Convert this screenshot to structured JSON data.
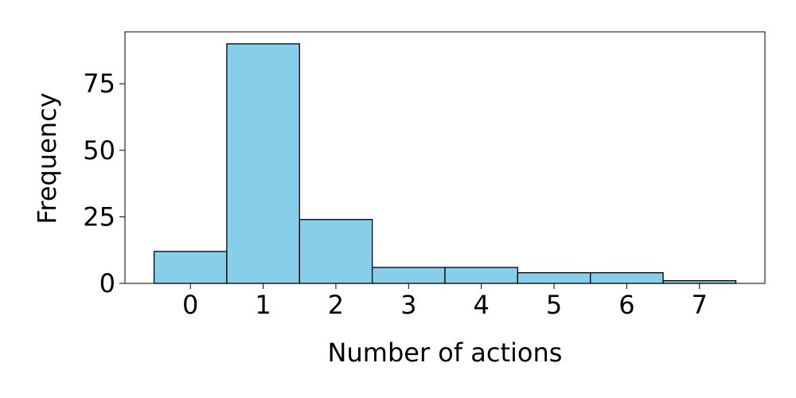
{
  "chart_data": {
    "type": "bar",
    "title": "",
    "xlabel": "Number of actions",
    "ylabel": "Frequency",
    "categories": [
      "0",
      "1",
      "2",
      "3",
      "4",
      "5",
      "6",
      "7"
    ],
    "values": [
      12,
      90,
      24,
      6,
      6,
      4,
      4,
      1
    ],
    "xlim": [
      -0.9,
      7.9
    ],
    "ylim": [
      0,
      94.5
    ],
    "xticks": [
      0,
      1,
      2,
      3,
      4,
      5,
      6,
      7
    ],
    "yticks": [
      0,
      25,
      50,
      75
    ],
    "grid": false,
    "legend": "none",
    "colors": {
      "bar_fill": "#87ceeb",
      "bar_edge": "#000000",
      "axes": "#000000",
      "background": "#ffffff"
    }
  }
}
